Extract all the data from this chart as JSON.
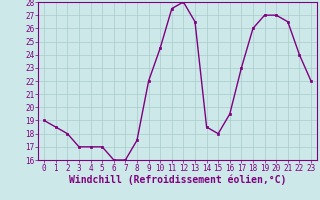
{
  "x": [
    0,
    1,
    2,
    3,
    4,
    5,
    6,
    7,
    8,
    9,
    10,
    11,
    12,
    13,
    14,
    15,
    16,
    17,
    18,
    19,
    20,
    21,
    22,
    23
  ],
  "y": [
    19,
    18.5,
    18,
    17,
    17,
    17,
    16,
    16,
    17.5,
    22,
    24.5,
    27.5,
    28,
    26.5,
    18.5,
    18,
    19.5,
    23,
    26,
    27,
    27,
    26.5,
    24,
    22
  ],
  "line_color": "#800080",
  "marker_color": "#800080",
  "bg_color": "#cce8e8",
  "grid_color": "#aacccc",
  "xlabel": "Windchill (Refroidissement éolien,°C)",
  "xlabel_color": "#800080",
  "ylim": [
    16,
    28
  ],
  "yticks": [
    16,
    17,
    18,
    19,
    20,
    21,
    22,
    23,
    24,
    25,
    26,
    27,
    28
  ],
  "xticks": [
    0,
    1,
    2,
    3,
    4,
    5,
    6,
    7,
    8,
    9,
    10,
    11,
    12,
    13,
    14,
    15,
    16,
    17,
    18,
    19,
    20,
    21,
    22,
    23
  ],
  "tick_color": "#800080",
  "tick_fontsize": 5.5,
  "xlabel_fontsize": 7.0,
  "line_width": 1.0,
  "marker_size": 2.0
}
